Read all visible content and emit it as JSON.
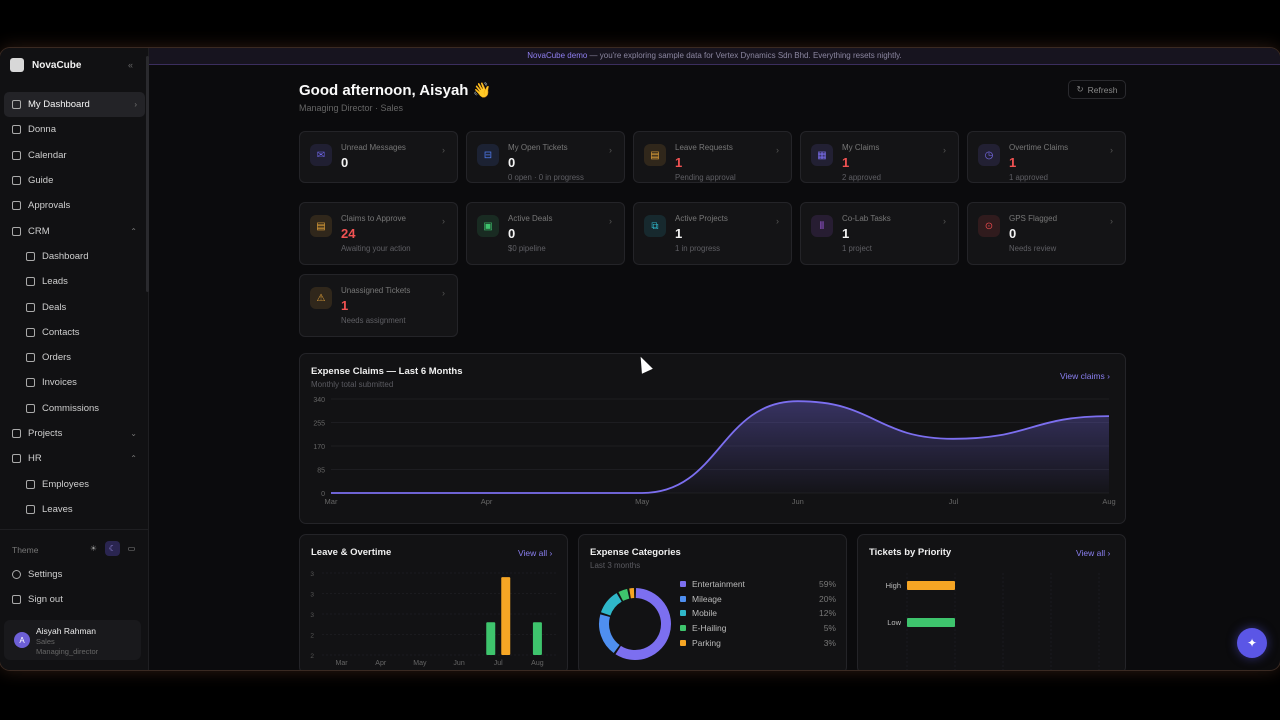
{
  "sidebar": {
    "brand": "NovaCube",
    "items": [
      {
        "label": "My Dashboard",
        "icon": "home-icon"
      },
      {
        "label": "Donna",
        "icon": "sparkle-icon"
      },
      {
        "label": "Calendar",
        "icon": "calendar-icon"
      },
      {
        "label": "Guide",
        "icon": "book-icon"
      },
      {
        "label": "Approvals",
        "icon": "check-circle-icon"
      },
      {
        "label": "CRM",
        "icon": "grid-icon"
      },
      {
        "label": "Dashboard",
        "icon": "dashboard-icon"
      },
      {
        "label": "Leads",
        "icon": "users-icon"
      },
      {
        "label": "Deals",
        "icon": "briefcase-icon"
      },
      {
        "label": "Contacts",
        "icon": "contact-icon"
      },
      {
        "label": "Orders",
        "icon": "cart-icon"
      },
      {
        "label": "Invoices",
        "icon": "invoice-icon"
      },
      {
        "label": "Commissions",
        "icon": "wallet-icon"
      },
      {
        "label": "Projects",
        "icon": "folder-icon"
      },
      {
        "label": "HR",
        "icon": "people-icon"
      },
      {
        "label": "Employees",
        "icon": "employee-icon"
      },
      {
        "label": "Leaves",
        "icon": "leaf-icon"
      }
    ],
    "theme_label": "Theme",
    "settings": "Settings",
    "sign_out": "Sign out",
    "user": {
      "initial": "A",
      "name": "Aisyah Rahman",
      "dept": "Sales",
      "role": "Managing_director"
    }
  },
  "banner": {
    "brand": "NovaCube demo",
    "text": " — you're exploring sample data for Vertex Dynamics Sdn Bhd. Everything resets nightly."
  },
  "header": {
    "greeting": "Good afternoon, Aisyah 👋",
    "role": "Managing Director · Sales",
    "refresh": "Refresh"
  },
  "cards": [
    {
      "label": "Unread Messages",
      "value": "0",
      "sub": "",
      "color": "#6f66e8",
      "icon": "mail-icon"
    },
    {
      "label": "My Open Tickets",
      "value": "0",
      "sub": "0 open · 0 in progress",
      "color": "#4f7cf0",
      "icon": "ticket-icon"
    },
    {
      "label": "Leave Requests",
      "value": "1",
      "sub": "Pending approval",
      "color": "#e5a43a",
      "icon": "document-icon"
    },
    {
      "label": "My Claims",
      "value": "1",
      "sub": "2 approved",
      "color": "#7c6ff0",
      "icon": "receipt-icon"
    },
    {
      "label": "Overtime Claims",
      "value": "1",
      "sub": "1 approved",
      "color": "#7c6ff0",
      "icon": "clock-icon"
    },
    {
      "label": "Claims to Approve",
      "value": "24",
      "sub": "Awaiting your action",
      "color": "#e5a43a",
      "icon": "clipboard-icon"
    },
    {
      "label": "Active Deals",
      "value": "0",
      "sub": "$0 pipeline",
      "color": "#3ec46d",
      "icon": "briefcase-icon"
    },
    {
      "label": "Active Projects",
      "value": "1",
      "sub": "1 in progress",
      "color": "#2fb7c9",
      "icon": "folder-icon"
    },
    {
      "label": "Co-Lab Tasks",
      "value": "1",
      "sub": "1 project",
      "color": "#a45ce6",
      "icon": "tasks-icon"
    },
    {
      "label": "GPS Flagged",
      "value": "0",
      "sub": "Needs review",
      "color": "#e5484d",
      "icon": "map-pin-icon"
    },
    {
      "label": "Unassigned Tickets",
      "value": "1",
      "sub": "Needs assignment",
      "color": "#e5a43a",
      "icon": "warning-icon"
    }
  ],
  "expense_chart": {
    "title": "Expense Claims — Last 6 Months",
    "subtitle": "Monthly total submitted",
    "link": "View claims ›",
    "chart_data": {
      "type": "area",
      "categories": [
        "Mar",
        "Apr",
        "May",
        "Jun",
        "Jul",
        "Aug"
      ],
      "values": [
        0,
        0,
        0,
        332,
        196,
        278
      ],
      "yticks": [
        "340",
        "255",
        "170",
        "85",
        "0"
      ],
      "ylim": [
        0,
        340
      ],
      "color": "#7c6ff0"
    }
  },
  "leave_chart": {
    "title": "Leave & Overtime",
    "link": "View all ›",
    "chart_data": {
      "type": "bar",
      "categories": [
        "Mar",
        "Apr",
        "May",
        "Jun",
        "Jul",
        "Aug"
      ],
      "series": [
        {
          "values": [
            0,
            0,
            0,
            0,
            1.6,
            1.6
          ],
          "color": "#3ec46d"
        },
        {
          "values": [
            0,
            0,
            0,
            0,
            3.8,
            0
          ],
          "color": "#f5a524"
        }
      ],
      "yticks": [
        "3",
        "3",
        "3",
        "2",
        "2"
      ],
      "ylim": [
        0,
        4
      ]
    }
  },
  "categories_chart": {
    "title": "Expense Categories",
    "subtitle": "Last 3 months",
    "chart_data": {
      "type": "pie",
      "labels": [
        "Entertainment",
        "Mileage",
        "Mobile",
        "E-Hailing",
        "Parking"
      ],
      "values": [
        59,
        20,
        12,
        5,
        3
      ],
      "display": [
        "59%",
        "20%",
        "12%",
        "5%",
        "3%"
      ],
      "colors": [
        "#7c6ff0",
        "#4f8ff0",
        "#2fb7c9",
        "#3ec46d",
        "#f5a524"
      ]
    }
  },
  "tickets_chart": {
    "title": "Tickets by Priority",
    "link": "View all ›",
    "chart_data": {
      "type": "bar",
      "categories": [
        "High",
        "Low"
      ],
      "values": [
        1,
        1
      ],
      "colors": [
        "#f5a524",
        "#3ec46d"
      ],
      "xticks": [
        "0",
        "1",
        "2",
        "3",
        "4"
      ],
      "xlim": [
        0,
        4
      ]
    }
  }
}
